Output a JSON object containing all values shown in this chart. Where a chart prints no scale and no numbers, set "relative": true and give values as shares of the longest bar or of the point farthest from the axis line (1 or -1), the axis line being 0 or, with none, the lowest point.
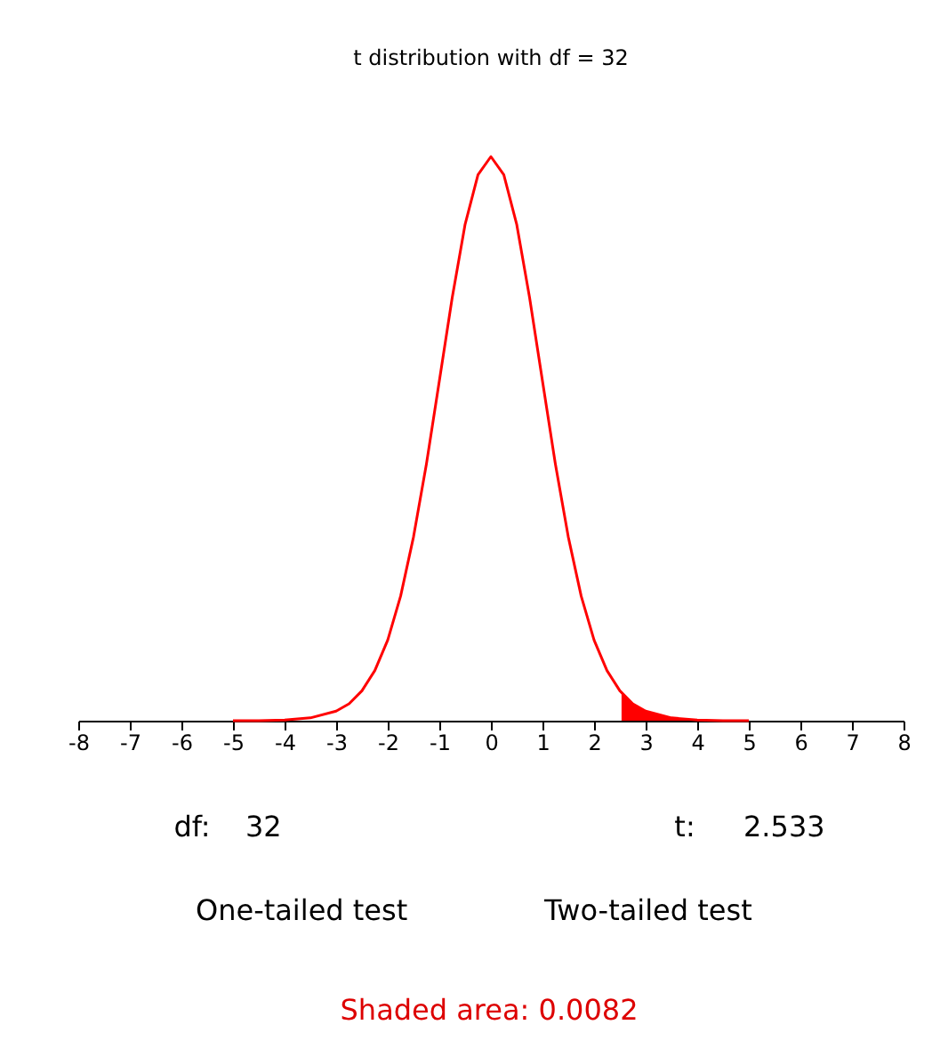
{
  "chart_data": {
    "type": "line",
    "title": "t distribution with df = 32",
    "relative": true,
    "xlim": [
      -8,
      8
    ],
    "xticks": [
      -8,
      -7,
      -6,
      -5,
      -4,
      -3,
      -2,
      -1,
      0,
      1,
      2,
      3,
      4,
      5,
      6,
      7,
      8
    ],
    "grid": false,
    "series": [
      {
        "type": "area",
        "color": "#ff0000",
        "x": [
          2.533,
          2.75,
          3,
          3.5,
          4,
          4.5,
          5
        ],
        "values": [
          0.049,
          0.03,
          0.017,
          0.005,
          0.001,
          0.0,
          0.0
        ]
      },
      {
        "color": "#ff0000",
        "x": [
          -5,
          -4.5,
          -4,
          -3.5,
          -3,
          -2.75,
          -2.5,
          -2.25,
          -2,
          -1.75,
          -1.5,
          -1.25,
          -1,
          -0.75,
          -0.5,
          -0.25,
          0,
          0.25,
          0.5,
          0.75,
          1,
          1.25,
          1.5,
          1.75,
          2,
          2.25,
          2.5,
          2.75,
          3,
          3.5,
          4,
          4.5,
          5
        ],
        "values": [
          0.0,
          0.0,
          0.001,
          0.005,
          0.017,
          0.03,
          0.053,
          0.089,
          0.143,
          0.221,
          0.326,
          0.455,
          0.602,
          0.75,
          0.88,
          0.968,
          1,
          0.968,
          0.88,
          0.75,
          0.602,
          0.455,
          0.326,
          0.221,
          0.143,
          0.089,
          0.053,
          0.03,
          0.017,
          0.005,
          0.001,
          0.0,
          0.0
        ]
      }
    ],
    "annotations": [
      "df:",
      "32",
      "t:",
      "2.533",
      "One-tailed test",
      "Two-tailed test",
      "Shaded area: 0.0082"
    ]
  }
}
